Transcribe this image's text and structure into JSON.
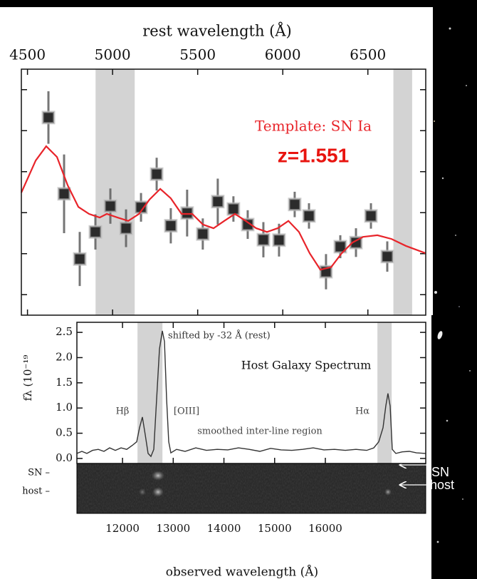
{
  "chart_data": [
    {
      "type": "errorbar",
      "x_label": "rest wavelength (Å)",
      "annotations": [
        "z=1.551"
      ],
      "xlim": [
        4464,
        6840
      ],
      "ylim": [
        -0.5,
        5.5
      ],
      "xticks": [
        4500,
        5000,
        5500,
        6000,
        6500
      ],
      "yticks": [
        0,
        1,
        2,
        3,
        4,
        5
      ],
      "shaded_regions": [
        [
          4900,
          5130
        ],
        [
          6650,
          6760
        ]
      ],
      "series": [
        {
          "color": "#2b2b2b",
          "x": [
            4623,
            4715,
            4807,
            4899,
            4987,
            5079,
            5167,
            5259,
            5342,
            5438,
            5530,
            5618,
            5710,
            5794,
            5886,
            5978,
            6070,
            6154,
            6254,
            6338,
            6430,
            6518,
            6614
          ],
          "values": [
            4.32,
            2.46,
            0.87,
            1.53,
            2.16,
            1.62,
            2.13,
            2.94,
            1.68,
            1.99,
            1.48,
            2.27,
            2.09,
            1.71,
            1.34,
            1.33,
            2.2,
            1.92,
            0.56,
            1.17,
            1.27,
            1.92,
            0.93
          ],
          "errors": [
            0.64,
            0.96,
            0.66,
            0.43,
            0.43,
            0.46,
            0.35,
            0.4,
            0.43,
            0.57,
            0.38,
            0.56,
            0.31,
            0.35,
            0.43,
            0.4,
            0.31,
            0.31,
            0.43,
            0.28,
            0.35,
            0.31,
            0.37
          ]
        },
        {
          "name": "Template: SN Ia",
          "color": "#e8242a",
          "x": [
            4464,
            4548,
            4610,
            4673,
            4736,
            4799,
            4862,
            4924,
            4966,
            5029,
            5092,
            5155,
            5217,
            5280,
            5342,
            5405,
            5468,
            5531,
            5593,
            5656,
            5719,
            5782,
            5844,
            5907,
            5970,
            6033,
            6095,
            6158,
            6221,
            6284,
            6346,
            6409,
            6472,
            6556,
            6639,
            6723,
            6840
          ],
          "values": [
            2.49,
            3.27,
            3.62,
            3.36,
            2.67,
            2.14,
            1.97,
            1.88,
            1.97,
            1.88,
            1.8,
            1.97,
            2.32,
            2.58,
            2.35,
            1.97,
            1.97,
            1.71,
            1.62,
            1.8,
            1.97,
            1.8,
            1.62,
            1.53,
            1.62,
            1.8,
            1.53,
            1.01,
            0.61,
            0.67,
            1.01,
            1.27,
            1.41,
            1.45,
            1.36,
            1.19,
            1.01
          ]
        }
      ]
    },
    {
      "type": "line",
      "title": "Host Galaxy Spectrum",
      "x_label": "observed wavelength (Å)",
      "y_label": "fλ (10⁻¹⁹",
      "annotations": [
        "shifted by -32 Å (rest)",
        "Hβ",
        "[OIII]",
        "Hα",
        "smoothed inter-line region"
      ],
      "trace_labels": [
        "SN –",
        "host –"
      ],
      "arrow_labels": [
        "SN",
        "host"
      ],
      "xlim": [
        11100,
        17980
      ],
      "ylim": [
        -0.1,
        2.7
      ],
      "xticks": [
        12000,
        13000,
        14000,
        15000,
        16000
      ],
      "yticks": [
        {
          "value": 0,
          "label": "0.0"
        },
        0.5,
        {
          "value": 1,
          "label": "1.0"
        },
        1.5,
        {
          "value": 2,
          "label": "2.0"
        },
        2.5
      ],
      "shaded_regions": [
        [
          12295,
          12787
        ],
        [
          17027,
          17308
        ]
      ],
      "series": [
        {
          "color": "#333333",
          "x": [
            11100,
            11198,
            11297,
            11409,
            11521,
            11634,
            11746,
            11858,
            11970,
            12083,
            12195,
            12279,
            12336,
            12392,
            12448,
            12504,
            12560,
            12616,
            12672,
            12729,
            12785,
            12827,
            12869,
            12911,
            12953,
            13066,
            13234,
            13445,
            13655,
            13866,
            14076,
            14287,
            14498,
            14708,
            14919,
            15129,
            15340,
            15551,
            15761,
            15972,
            16182,
            16393,
            16604,
            16814,
            16955,
            17053,
            17137,
            17193,
            17235,
            17278,
            17320,
            17390,
            17516,
            17657,
            17797,
            17980
          ],
          "values": [
            0.1,
            0.14,
            0.1,
            0.16,
            0.18,
            0.14,
            0.21,
            0.16,
            0.21,
            0.18,
            0.26,
            0.33,
            0.61,
            0.82,
            0.47,
            0.1,
            0.04,
            0.18,
            1.18,
            2.17,
            2.53,
            2.32,
            1.18,
            0.33,
            0.11,
            0.18,
            0.14,
            0.21,
            0.16,
            0.18,
            0.17,
            0.21,
            0.18,
            0.14,
            0.2,
            0.17,
            0.16,
            0.18,
            0.21,
            0.17,
            0.18,
            0.16,
            0.18,
            0.16,
            0.21,
            0.33,
            0.61,
            1.04,
            1.29,
            1.04,
            0.18,
            0.1,
            0.13,
            0.14,
            0.11,
            0.1
          ]
        }
      ]
    }
  ]
}
